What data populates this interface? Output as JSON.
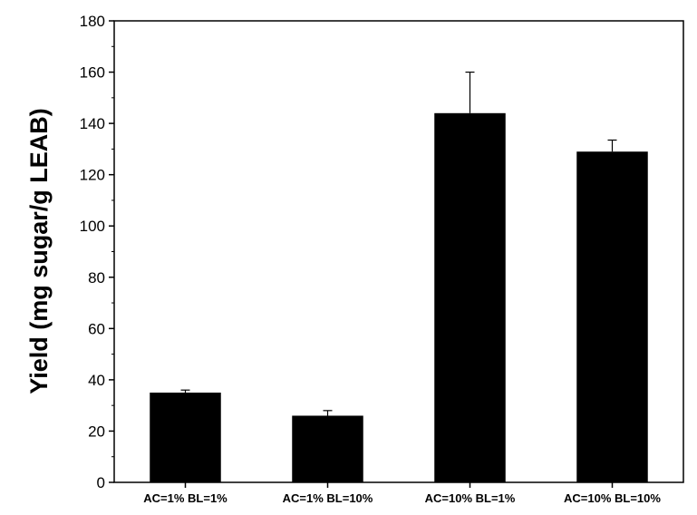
{
  "chart_data": {
    "type": "bar",
    "title": "",
    "xlabel": "",
    "ylabel": "Yield (mg sugar/g LEAB)",
    "ylim": [
      0,
      180
    ],
    "yticks": [
      0,
      20,
      40,
      60,
      80,
      100,
      120,
      140,
      160,
      180
    ],
    "categories": [
      "AC=1% BL=1%",
      "AC=1% BL=10%",
      "AC=10% BL=1%",
      "AC=10% BL=10%"
    ],
    "values": [
      35,
      26,
      144,
      129
    ],
    "errors": [
      1,
      2,
      16,
      4.5
    ],
    "grid": false,
    "legend": "none",
    "colors": {
      "bar": "#000000",
      "axis": "#000000",
      "background": "#ffffff"
    }
  }
}
